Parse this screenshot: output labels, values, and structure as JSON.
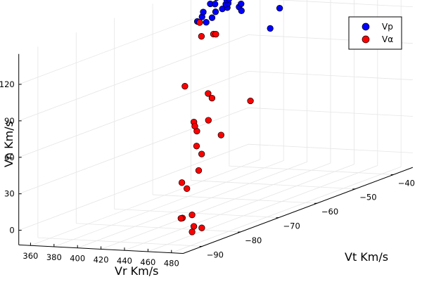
{
  "chart_data": {
    "type": "scatter",
    "xlabel": "Vr Km/s",
    "ylabel": "Vt Km/s",
    "zlabel": "Vn Km/s",
    "x_ticks": [
      "360",
      "380",
      "400",
      "420",
      "440",
      "460",
      "480"
    ],
    "y_ticks": [
      "−90",
      "−80",
      "−70",
      "−60",
      "−50",
      "−40"
    ],
    "z_ticks": [
      "0",
      "30",
      "60",
      "90",
      "120"
    ],
    "grid": true,
    "legend_position": "top-right",
    "series": [
      {
        "name": "Vp",
        "color": "#0000ff",
        "points": [
          [
            375,
            -56,
            127
          ],
          [
            376,
            -54,
            124
          ],
          [
            379,
            -56,
            131
          ],
          [
            381,
            -54,
            128
          ],
          [
            380,
            -56,
            135
          ],
          [
            384,
            -54,
            133
          ],
          [
            386,
            -56,
            142
          ],
          [
            388,
            -55,
            146
          ],
          [
            390,
            -56,
            142
          ],
          [
            393,
            -55,
            137
          ],
          [
            394,
            -54,
            137
          ],
          [
            396,
            -55,
            141
          ],
          [
            398,
            -55,
            142
          ],
          [
            400,
            -56,
            146
          ],
          [
            402,
            -56,
            147
          ],
          [
            404,
            -54,
            138
          ],
          [
            406,
            -54,
            135
          ],
          [
            409,
            -55,
            142
          ],
          [
            412,
            -55,
            151
          ],
          [
            414,
            -55,
            151
          ],
          [
            424,
            -52,
            119
          ],
          [
            426,
            -55,
            152
          ],
          [
            432,
            -52,
            136
          ]
        ]
      },
      {
        "name": "Vα",
        "color": "#ff0000",
        "points": [
          [
            398,
            -62,
            123
          ],
          [
            405,
            -61,
            124
          ],
          [
            407,
            -61,
            124
          ],
          [
            403,
            -64,
            137
          ],
          [
            430,
            -59,
            68
          ],
          [
            460,
            -86,
            5
          ],
          [
            410,
            -70,
            92
          ],
          [
            420,
            -67,
            83
          ],
          [
            420,
            -66,
            78
          ],
          [
            418,
            -63,
            44
          ],
          [
            447,
            -79,
            75
          ],
          [
            443,
            -77,
            65
          ],
          [
            451,
            -80,
            73
          ],
          [
            446,
            -78,
            54
          ],
          [
            434,
            -73,
            41
          ],
          [
            430,
            -70,
            65
          ],
          [
            438,
            -75,
            30
          ],
          [
            441,
            -79,
            20
          ],
          [
            440,
            -80,
            26
          ],
          [
            478,
            -89,
            12
          ],
          [
            462,
            -87,
            6
          ],
          [
            478,
            -89,
            -2
          ],
          [
            470,
            -84,
            -5
          ],
          [
            473,
            -87,
            0
          ]
        ]
      }
    ]
  }
}
